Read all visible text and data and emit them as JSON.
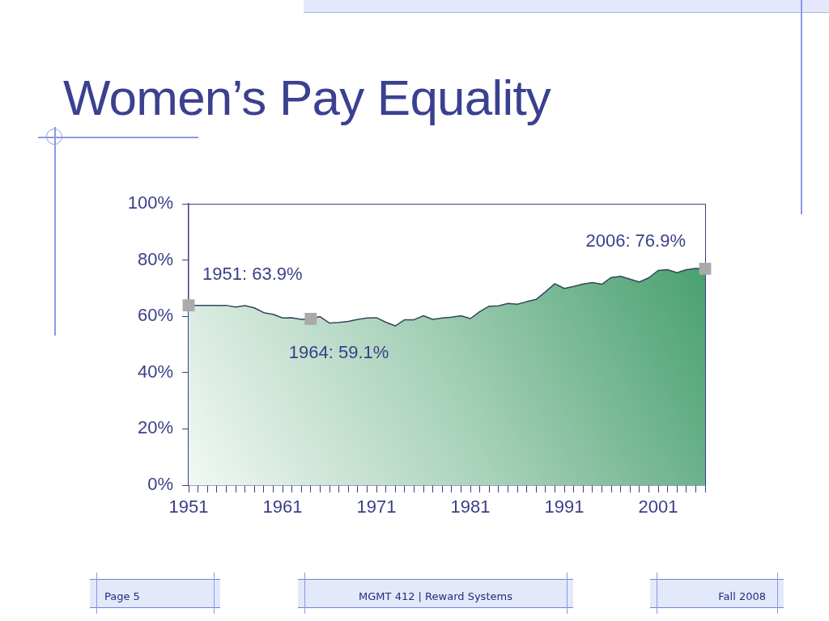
{
  "chart_data": {
    "type": "area",
    "title": "Women’s Pay Equality",
    "x": [
      1951,
      1952,
      1953,
      1954,
      1955,
      1956,
      1957,
      1958,
      1959,
      1960,
      1961,
      1962,
      1963,
      1964,
      1965,
      1966,
      1967,
      1968,
      1969,
      1970,
      1971,
      1972,
      1973,
      1974,
      1975,
      1976,
      1977,
      1978,
      1979,
      1980,
      1981,
      1982,
      1983,
      1984,
      1985,
      1986,
      1987,
      1988,
      1989,
      1990,
      1991,
      1992,
      1993,
      1994,
      1995,
      1996,
      1997,
      1998,
      1999,
      2000,
      2001,
      2002,
      2003,
      2004,
      2005,
      2006
    ],
    "series": [
      {
        "color": "#3f9b67",
        "values": [
          63.9,
          63.9,
          63.9,
          63.9,
          63.9,
          63.3,
          63.8,
          63.0,
          61.3,
          60.7,
          59.4,
          59.5,
          58.9,
          59.1,
          59.9,
          57.6,
          57.8,
          58.2,
          58.9,
          59.4,
          59.5,
          57.9,
          56.6,
          58.8,
          58.8,
          60.2,
          58.9,
          59.4,
          59.7,
          60.2,
          59.2,
          61.7,
          63.6,
          63.7,
          64.6,
          64.3,
          65.2,
          66.0,
          68.7,
          71.6,
          69.9,
          70.6,
          71.5,
          72.0,
          71.4,
          73.8,
          74.2,
          73.2,
          72.2,
          73.7,
          76.3,
          76.6,
          75.5,
          76.6,
          77.0,
          76.9
        ]
      },
      {
        "type": "scatter",
        "marker": "square",
        "color": "#aaaaaa",
        "x": [
          1951,
          1964,
          2006
        ],
        "values": [
          63.9,
          59.1,
          76.9
        ]
      }
    ],
    "xlim": [
      1951,
      2006
    ],
    "xticks": [
      1951,
      {
        "value": 1952,
        "label": null
      },
      {
        "value": 1953,
        "label": null
      },
      {
        "value": 1954,
        "label": null
      },
      {
        "value": 1955,
        "label": null
      },
      {
        "value": 1956,
        "label": null
      },
      {
        "value": 1957,
        "label": null
      },
      {
        "value": 1958,
        "label": null
      },
      {
        "value": 1959,
        "label": null
      },
      {
        "value": 1960,
        "label": null
      },
      1961,
      {
        "value": 1962,
        "label": null
      },
      {
        "value": 1963,
        "label": null
      },
      {
        "value": 1964,
        "label": null
      },
      {
        "value": 1965,
        "label": null
      },
      {
        "value": 1966,
        "label": null
      },
      {
        "value": 1967,
        "label": null
      },
      {
        "value": 1968,
        "label": null
      },
      {
        "value": 1969,
        "label": null
      },
      {
        "value": 1970,
        "label": null
      },
      1971,
      {
        "value": 1972,
        "label": null
      },
      {
        "value": 1973,
        "label": null
      },
      {
        "value": 1974,
        "label": null
      },
      {
        "value": 1975,
        "label": null
      },
      {
        "value": 1976,
        "label": null
      },
      {
        "value": 1977,
        "label": null
      },
      {
        "value": 1978,
        "label": null
      },
      {
        "value": 1979,
        "label": null
      },
      {
        "value": 1980,
        "label": null
      },
      1981,
      {
        "value": 1982,
        "label": null
      },
      {
        "value": 1983,
        "label": null
      },
      {
        "value": 1984,
        "label": null
      },
      {
        "value": 1985,
        "label": null
      },
      {
        "value": 1986,
        "label": null
      },
      {
        "value": 1987,
        "label": null
      },
      {
        "value": 1988,
        "label": null
      },
      {
        "value": 1989,
        "label": null
      },
      {
        "value": 1990,
        "label": null
      },
      1991,
      {
        "value": 1992,
        "label": null
      },
      {
        "value": 1993,
        "label": null
      },
      {
        "value": 1994,
        "label": null
      },
      {
        "value": 1995,
        "label": null
      },
      {
        "value": 1996,
        "label": null
      },
      {
        "value": 1997,
        "label": null
      },
      {
        "value": 1998,
        "label": null
      },
      {
        "value": 1999,
        "label": null
      },
      {
        "value": 2000,
        "label": null
      },
      2001,
      {
        "value": 2002,
        "label": null
      },
      {
        "value": 2003,
        "label": null
      },
      {
        "value": 2004,
        "label": null
      },
      {
        "value": 2005,
        "label": null
      },
      {
        "value": 2006,
        "label": null
      }
    ],
    "ylim": [
      0,
      100
    ],
    "yticks": [
      {
        "value": 0,
        "label": "0%"
      },
      {
        "value": 20,
        "label": "20%"
      },
      {
        "value": 40,
        "label": "40%"
      },
      {
        "value": 60,
        "label": "60%"
      },
      {
        "value": 80,
        "label": "80%"
      },
      {
        "value": 100,
        "label": "100%"
      }
    ],
    "annotations": [
      {
        "text": "1951: 63.9%",
        "x": 1951,
        "y": 63.9
      },
      {
        "text": "1964: 59.1%",
        "x": 1964,
        "y": 59.1
      },
      {
        "text": "2006: 76.9%",
        "x": 2006,
        "y": 76.9
      },
      "Page 5",
      "MGMT 412 | Reward Systems",
      "Fall 2008"
    ]
  }
}
